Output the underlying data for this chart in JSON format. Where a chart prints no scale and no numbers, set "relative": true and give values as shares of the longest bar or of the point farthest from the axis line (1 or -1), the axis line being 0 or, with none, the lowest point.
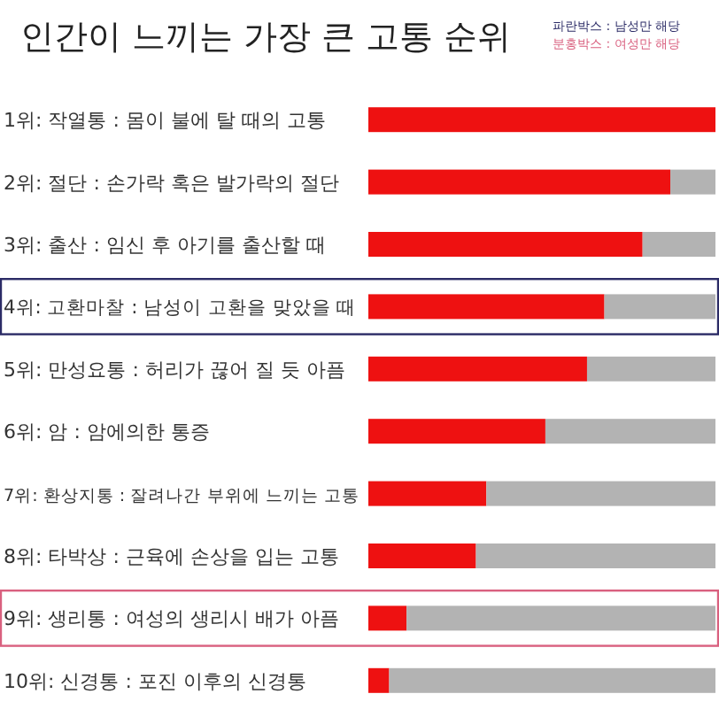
{
  "chart_data": {
    "type": "bar",
    "orientation": "horizontal",
    "stacked": true,
    "relative": true,
    "title": "인간이 느끼는 가장 큰 고통 순위",
    "annotations": [
      "파란박스 : 남성만 해당",
      "분홍박스 : 여성만 해당"
    ],
    "categories": [
      "1위: 작열통 : 몸이 불에 탈 때의 고통",
      "2위: 절단 : 손가락 혹은 발가락의 절단",
      "3위: 출산 : 임신 후 아기를 출산할 때",
      "4위: 고환마찰 : 남성이 고환을 맞았을 때",
      "5위: 만성요통 : 허리가 끊어 질 듯 아픔",
      "6위: 암 : 암에의한 통증",
      "7위: 환상지통 : 잘려나간 부위에 느끼는 고통",
      "8위: 타박상 : 근육에 손상을 입는 고통",
      "9위: 생리통 : 여성의 생리시 배가 아픔",
      "10위: 신경통 : 포진 이후의 신경통"
    ],
    "series": [
      {
        "color": "#ee1111",
        "values": [
          1,
          0.87,
          0.79,
          0.68,
          0.63,
          0.51,
          0.34,
          0.31,
          0.11,
          0.06
        ]
      },
      {
        "color": "#b3b3b3",
        "values": [
          0,
          0.13,
          0.21,
          0.32,
          0.37,
          0.49,
          0.66,
          0.69,
          0.89,
          0.94
        ]
      }
    ]
  }
}
